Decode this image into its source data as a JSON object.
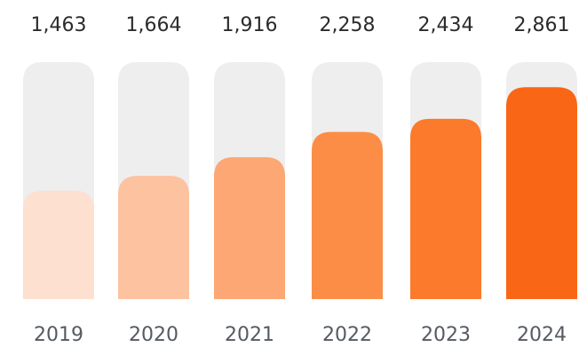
{
  "chart_data": {
    "type": "bar",
    "categories": [
      "2019",
      "2020",
      "2021",
      "2022",
      "2023",
      "2024"
    ],
    "values": [
      1463,
      1664,
      1916,
      2258,
      2434,
      2861
    ],
    "value_labels": [
      "1,463",
      "1,664",
      "1,916",
      "2,258",
      "2,434",
      "2,861"
    ],
    "title": "",
    "xlabel": "",
    "ylabel": "",
    "ylim": [
      0,
      3200
    ],
    "grid": false,
    "legend": "none"
  },
  "colors": {
    "track": "#eeeeee",
    "bars": [
      "#fde0cf",
      "#fdc2a0",
      "#fca774",
      "#fc8d46",
      "#fb7a2b",
      "#f96615"
    ],
    "value_text": "#2b2b2b",
    "year_text": "#555b62"
  }
}
